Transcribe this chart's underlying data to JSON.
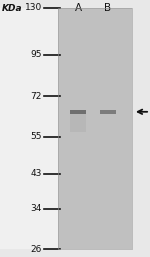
{
  "fig_width": 1.5,
  "fig_height": 2.57,
  "dpi": 100,
  "bg_color": "#e8e8e8",
  "ladder_bg": "#f0f0f0",
  "gel_bg": "#c0c0c0",
  "kda_labels": [
    "130",
    "95",
    "72",
    "55",
    "43",
    "34",
    "26"
  ],
  "kda_values": [
    130,
    95,
    72,
    55,
    43,
    34,
    26
  ],
  "lane_labels": [
    "A",
    "B"
  ],
  "font_size_kda": 6.5,
  "font_size_lane": 7.5,
  "font_size_kdatitle": 6.5,
  "arrow_color": "#111111",
  "band_kda": 65,
  "band_color_A": "#666666",
  "band_color_B": "#707070",
  "tick_color": "#111111",
  "label_color": "#111111"
}
